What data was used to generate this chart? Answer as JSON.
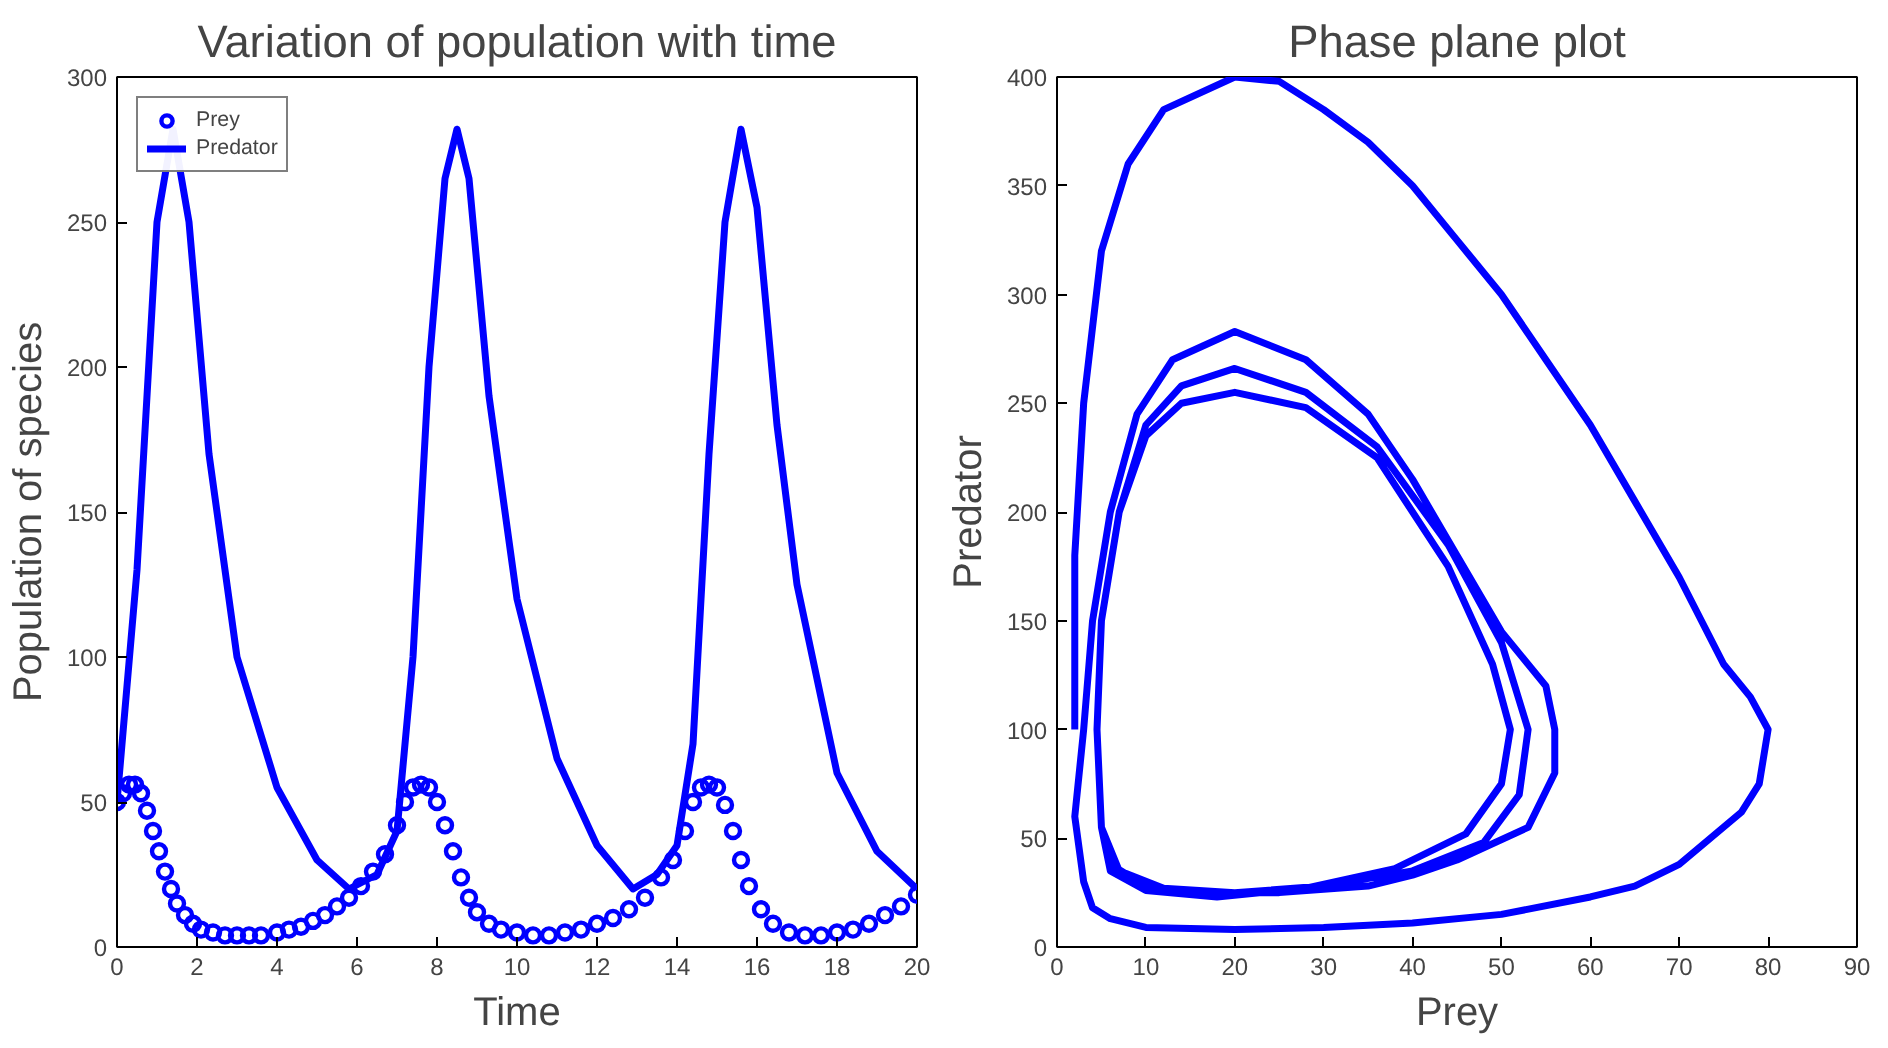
{
  "chart_data": [
    {
      "type": "line",
      "title": "Variation of population with time",
      "xlabel": "Time",
      "ylabel": "Population of species",
      "xlim": [
        0,
        20
      ],
      "ylim": [
        0,
        300
      ],
      "xticks": [
        0,
        2,
        4,
        6,
        8,
        10,
        12,
        14,
        16,
        18,
        20
      ],
      "yticks": [
        0,
        50,
        100,
        150,
        200,
        250,
        300
      ],
      "grid": false,
      "legend": "top left",
      "series": [
        {
          "name": "Prey",
          "type": "scatter",
          "marker": "circle",
          "color": "#0000ff",
          "x": [
            0,
            0.15,
            0.3,
            0.45,
            0.6,
            0.75,
            0.9,
            1.05,
            1.2,
            1.35,
            1.5,
            1.7,
            1.9,
            2.1,
            2.4,
            2.7,
            3.0,
            3.3,
            3.6,
            4.0,
            4.3,
            4.6,
            4.9,
            5.2,
            5.5,
            5.8,
            6.1,
            6.4,
            6.7,
            7.0,
            7.2,
            7.4,
            7.6,
            7.8,
            8.0,
            8.2,
            8.4,
            8.6,
            8.8,
            9.0,
            9.3,
            9.6,
            10.0,
            10.4,
            10.8,
            11.2,
            11.6,
            12.0,
            12.4,
            12.8,
            13.2,
            13.6,
            13.9,
            14.2,
            14.4,
            14.6,
            14.8,
            15.0,
            15.2,
            15.4,
            15.6,
            15.8,
            16.1,
            16.4,
            16.8,
            17.2,
            17.6,
            18.0,
            18.4,
            18.8,
            19.2,
            19.6,
            20.0
          ],
          "values": [
            50,
            53,
            56,
            56,
            53,
            47,
            40,
            33,
            26,
            20,
            15,
            11,
            8,
            6,
            5,
            4,
            4,
            4,
            4,
            5,
            6,
            7,
            9,
            11,
            14,
            17,
            21,
            26,
            32,
            42,
            50,
            55,
            56,
            55,
            50,
            42,
            33,
            24,
            17,
            12,
            8,
            6,
            5,
            4,
            4,
            5,
            6,
            8,
            10,
            13,
            17,
            24,
            30,
            40,
            50,
            55,
            56,
            55,
            49,
            40,
            30,
            21,
            13,
            8,
            5,
            4,
            4,
            5,
            6,
            8,
            11,
            14,
            18
          ]
        },
        {
          "name": "Predator",
          "type": "line",
          "color": "#0000ff",
          "x": [
            0,
            0.5,
            1.0,
            1.4,
            1.8,
            2.3,
            3.0,
            4.0,
            5.0,
            5.8,
            6.5,
            7.0,
            7.4,
            7.8,
            8.2,
            8.5,
            8.8,
            9.3,
            10.0,
            11.0,
            12.0,
            12.9,
            13.5,
            14.0,
            14.4,
            14.8,
            15.2,
            15.6,
            16.0,
            16.5,
            17.0,
            18.0,
            19.0,
            20.0
          ],
          "values": [
            50,
            130,
            250,
            282,
            250,
            170,
            100,
            55,
            30,
            20,
            25,
            40,
            100,
            200,
            265,
            282,
            265,
            190,
            120,
            65,
            35,
            20,
            25,
            35,
            70,
            170,
            250,
            282,
            255,
            180,
            125,
            60,
            33,
            20
          ]
        }
      ]
    },
    {
      "type": "line",
      "title": "Phase plane plot",
      "xlabel": "Prey",
      "ylabel": "Predator",
      "xlim": [
        0,
        90
      ],
      "ylim": [
        0,
        400
      ],
      "xticks": [
        0,
        10,
        20,
        30,
        40,
        50,
        60,
        70,
        80,
        90
      ],
      "yticks": [
        0,
        50,
        100,
        150,
        200,
        250,
        300,
        350,
        400
      ],
      "grid": false,
      "series": [
        {
          "color": "#0000ff",
          "x": [
            2,
            2,
            3,
            5,
            8,
            12,
            20,
            25,
            30,
            35,
            40,
            45,
            50,
            55,
            60,
            65,
            70,
            75,
            78,
            80,
            79,
            77,
            70,
            65,
            60,
            50,
            40,
            30,
            20,
            10,
            6,
            4,
            3,
            2,
            3,
            4,
            6,
            9,
            13,
            20,
            28,
            35,
            40,
            45,
            50,
            55,
            56,
            56,
            53,
            45,
            40,
            35,
            25,
            15,
            10,
            6,
            5,
            4.5,
            5,
            7,
            10,
            14,
            20,
            28,
            36,
            44,
            50,
            53,
            52,
            48,
            40,
            30,
            20,
            12,
            7,
            5,
            4.5,
            5,
            7,
            10,
            14,
            20,
            28,
            36,
            44,
            49,
            51,
            50,
            46,
            38,
            28,
            18,
            10,
            6,
            5,
            4.5,
            5,
            7,
            10,
            14,
            20,
            28,
            36,
            44,
            49,
            51,
            50
          ],
          "values": [
            100,
            180,
            250,
            320,
            360,
            385,
            400,
            398,
            385,
            370,
            350,
            325,
            300,
            270,
            240,
            205,
            170,
            130,
            115,
            100,
            75,
            62,
            38,
            28,
            23,
            15,
            11,
            9,
            8,
            9,
            13,
            18,
            30,
            60,
            100,
            150,
            200,
            245,
            270,
            283,
            270,
            245,
            215,
            180,
            145,
            120,
            100,
            80,
            55,
            40,
            33,
            28,
            25,
            25,
            28,
            38,
            55,
            100,
            150,
            200,
            240,
            258,
            266,
            255,
            230,
            185,
            140,
            100,
            70,
            48,
            35,
            28,
            25,
            27,
            35,
            55,
            100,
            150,
            200,
            235,
            250,
            255,
            248,
            225,
            175,
            130,
            100,
            75,
            52,
            36,
            27,
            23,
            26,
            35,
            55,
            100,
            150,
            200,
            235,
            250,
            255,
            248,
            225,
            175,
            130,
            100,
            75
          ]
        }
      ]
    }
  ]
}
